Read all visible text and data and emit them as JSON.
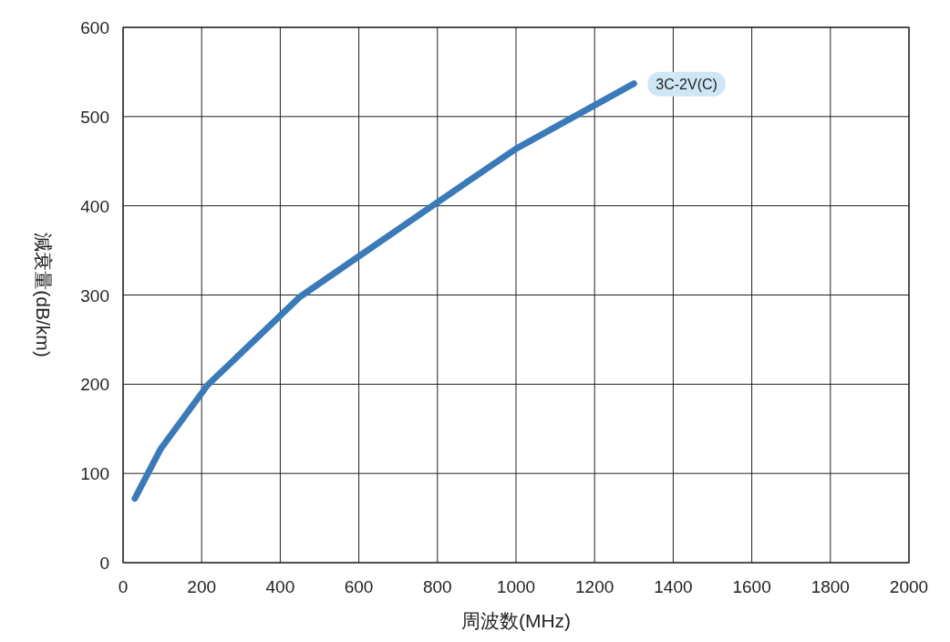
{
  "chart_data": {
    "type": "line",
    "xlabel": "周波数(MHz)",
    "ylabel": "減衰量(dB/km)",
    "x": [
      30,
      95,
      215,
      450,
      800,
      1000,
      1300
    ],
    "series": [
      {
        "name": "3C-2V(C)",
        "color": "#3a7ab8",
        "values": [
          72,
          127,
          199,
          298,
          404,
          464,
          537
        ]
      }
    ],
    "xlim": [
      0,
      2000
    ],
    "ylim": [
      0,
      600
    ],
    "xticks": [
      0,
      200,
      400,
      600,
      800,
      1000,
      1200,
      1400,
      1600,
      1800,
      2000
    ],
    "yticks": [
      0,
      100,
      200,
      300,
      400,
      500,
      600
    ],
    "grid": true,
    "legend": false,
    "marker": "none",
    "line_style": "solid"
  }
}
